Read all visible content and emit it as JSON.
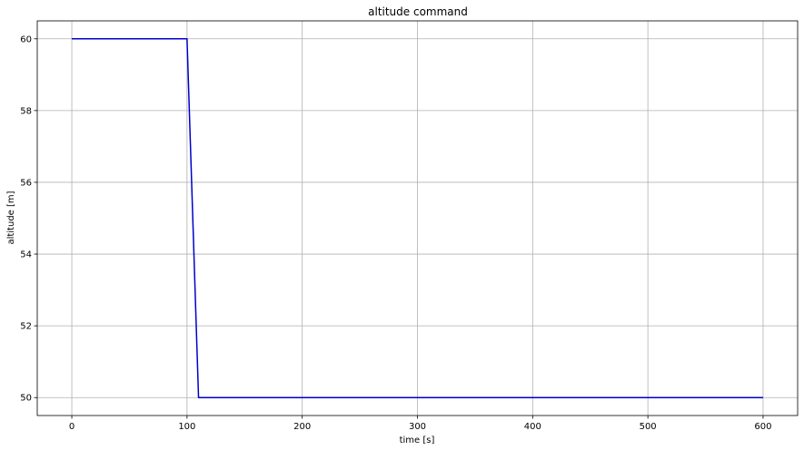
{
  "chart_data": {
    "type": "line",
    "title": "altitude command",
    "xlabel": "time [s]",
    "ylabel": "altitude [m]",
    "xlim": [
      -30,
      630
    ],
    "ylim": [
      49.5,
      60.5
    ],
    "xticks": [
      0,
      100,
      200,
      300,
      400,
      500,
      600
    ],
    "yticks": [
      50,
      52,
      54,
      56,
      58,
      60
    ],
    "xtick_labels": [
      "0",
      "100",
      "200",
      "300",
      "400",
      "500",
      "600"
    ],
    "ytick_labels": [
      "50",
      "52",
      "54",
      "56",
      "58",
      "60"
    ],
    "grid": true,
    "series": [
      {
        "color": "#0000cc",
        "x": [
          0,
          100,
          110,
          600
        ],
        "y": [
          60,
          60,
          50,
          50
        ]
      }
    ]
  }
}
